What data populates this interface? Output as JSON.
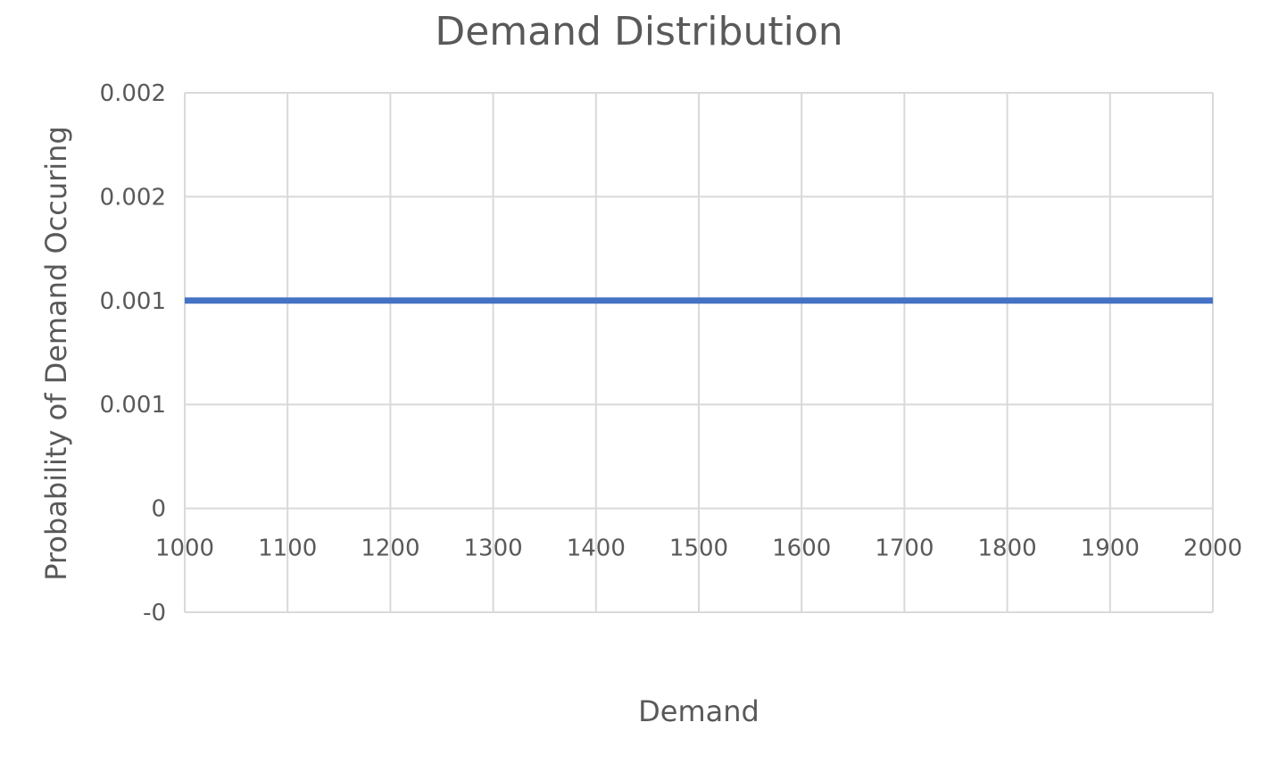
{
  "chart_data": {
    "type": "line",
    "title": "Demand Distribution",
    "xlabel": "Demand",
    "ylabel": "Probability of Demand Occuring",
    "xlim": [
      1000,
      2000
    ],
    "ylim": [
      -0.0005,
      0.002
    ],
    "x_ticks": [
      {
        "value": 1000,
        "label": "1000"
      },
      {
        "value": 1100,
        "label": "1100"
      },
      {
        "value": 1200,
        "label": "1200"
      },
      {
        "value": 1300,
        "label": "1300"
      },
      {
        "value": 1400,
        "label": "1400"
      },
      {
        "value": 1500,
        "label": "1500"
      },
      {
        "value": 1600,
        "label": "1600"
      },
      {
        "value": 1700,
        "label": "1700"
      },
      {
        "value": 1800,
        "label": "1800"
      },
      {
        "value": 1900,
        "label": "1900"
      },
      {
        "value": 2000,
        "label": "2000"
      }
    ],
    "y_ticks": [
      {
        "value": -0.0005,
        "label": "-0"
      },
      {
        "value": 0,
        "label": "0"
      },
      {
        "value": 0.0005,
        "label": "0.001"
      },
      {
        "value": 0.001,
        "label": "0.001"
      },
      {
        "value": 0.0015,
        "label": "0.002"
      },
      {
        "value": 0.002,
        "label": "0.002"
      }
    ],
    "grid": true,
    "legend": "none",
    "series": [
      {
        "x": [
          1000,
          2000
        ],
        "y": [
          0.001,
          0.001
        ],
        "color": "#4472c4"
      }
    ]
  }
}
